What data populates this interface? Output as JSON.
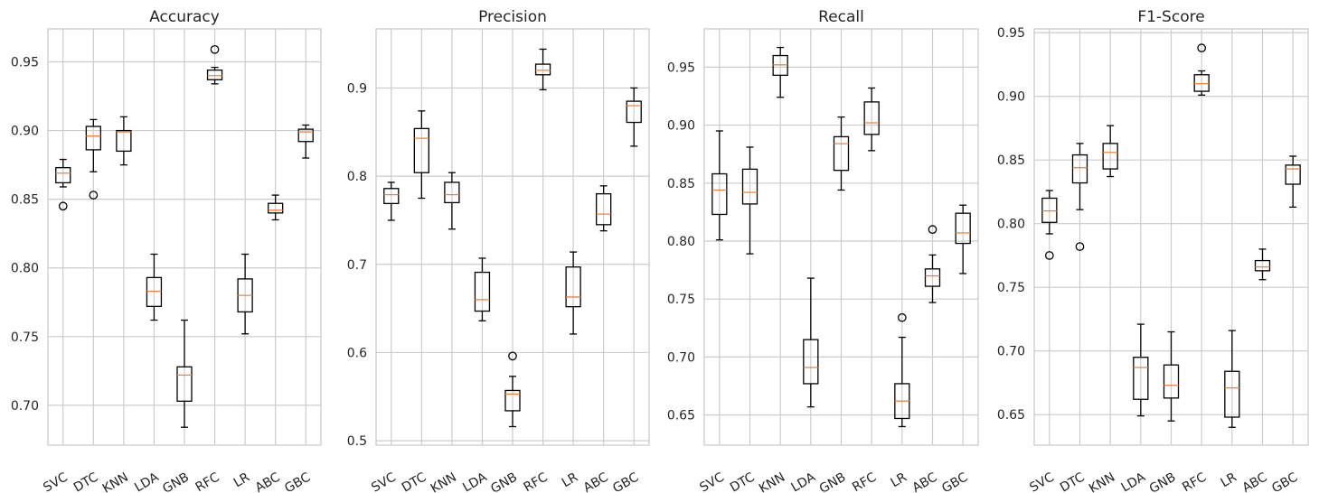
{
  "chart_data": [
    {
      "type": "box",
      "title": "Accuracy",
      "categories": [
        "SVC",
        "DTC",
        "KNN",
        "LDA",
        "GNB",
        "RFC",
        "LR",
        "ABC",
        "GBC"
      ],
      "yticks": [
        0.7,
        0.75,
        0.8,
        0.85,
        0.9,
        0.95
      ],
      "ytick_labels": [
        "0.70",
        "0.75",
        "0.80",
        "0.85",
        "0.90",
        "0.95"
      ],
      "ylim": [
        0.671,
        0.974
      ],
      "grid": true,
      "boxes": [
        {
          "whislo": 0.859,
          "q1": 0.862,
          "med": 0.869,
          "q3": 0.873,
          "whishi": 0.879,
          "fliers": [
            0.845
          ]
        },
        {
          "whislo": 0.87,
          "q1": 0.886,
          "med": 0.896,
          "q3": 0.903,
          "whishi": 0.908,
          "fliers": [
            0.853
          ]
        },
        {
          "whislo": 0.875,
          "q1": 0.885,
          "med": 0.899,
          "q3": 0.9,
          "whishi": 0.91,
          "fliers": []
        },
        {
          "whislo": 0.762,
          "q1": 0.772,
          "med": 0.783,
          "q3": 0.793,
          "whishi": 0.81,
          "fliers": []
        },
        {
          "whislo": 0.684,
          "q1": 0.703,
          "med": 0.722,
          "q3": 0.728,
          "whishi": 0.762,
          "fliers": []
        },
        {
          "whislo": 0.934,
          "q1": 0.937,
          "med": 0.94,
          "q3": 0.944,
          "whishi": 0.946,
          "fliers": [
            0.959
          ]
        },
        {
          "whislo": 0.752,
          "q1": 0.768,
          "med": 0.78,
          "q3": 0.792,
          "whishi": 0.81,
          "fliers": []
        },
        {
          "whislo": 0.835,
          "q1": 0.84,
          "med": 0.842,
          "q3": 0.847,
          "whishi": 0.853,
          "fliers": []
        },
        {
          "whislo": 0.88,
          "q1": 0.892,
          "med": 0.899,
          "q3": 0.901,
          "whishi": 0.904,
          "fliers": []
        }
      ]
    },
    {
      "type": "box",
      "title": "Precision",
      "categories": [
        "SVC",
        "DTC",
        "KNN",
        "LDA",
        "GNB",
        "RFC",
        "LR",
        "ABC",
        "GBC"
      ],
      "yticks": [
        0.5,
        0.6,
        0.7,
        0.8,
        0.9
      ],
      "ytick_labels": [
        "0.5",
        "0.6",
        "0.7",
        "0.8",
        "0.9"
      ],
      "ylim": [
        0.495,
        0.967
      ],
      "grid": true,
      "boxes": [
        {
          "whislo": 0.75,
          "q1": 0.769,
          "med": 0.779,
          "q3": 0.786,
          "whishi": 0.793,
          "fliers": []
        },
        {
          "whislo": 0.775,
          "q1": 0.804,
          "med": 0.843,
          "q3": 0.854,
          "whishi": 0.874,
          "fliers": []
        },
        {
          "whislo": 0.74,
          "q1": 0.77,
          "med": 0.779,
          "q3": 0.793,
          "whishi": 0.804,
          "fliers": []
        },
        {
          "whislo": 0.636,
          "q1": 0.647,
          "med": 0.66,
          "q3": 0.691,
          "whishi": 0.707,
          "fliers": []
        },
        {
          "whislo": 0.516,
          "q1": 0.534,
          "med": 0.553,
          "q3": 0.557,
          "whishi": 0.573,
          "fliers": [
            0.596
          ]
        },
        {
          "whislo": 0.898,
          "q1": 0.915,
          "med": 0.92,
          "q3": 0.927,
          "whishi": 0.944,
          "fliers": []
        },
        {
          "whislo": 0.621,
          "q1": 0.652,
          "med": 0.663,
          "q3": 0.697,
          "whishi": 0.714,
          "fliers": []
        },
        {
          "whislo": 0.738,
          "q1": 0.745,
          "med": 0.757,
          "q3": 0.78,
          "whishi": 0.789,
          "fliers": []
        },
        {
          "whislo": 0.834,
          "q1": 0.861,
          "med": 0.88,
          "q3": 0.885,
          "whishi": 0.9,
          "fliers": []
        }
      ]
    },
    {
      "type": "box",
      "title": "Recall",
      "categories": [
        "SVC",
        "DTC",
        "KNN",
        "LDA",
        "GNB",
        "RFC",
        "LR",
        "ABC",
        "GBC"
      ],
      "yticks": [
        0.65,
        0.7,
        0.75,
        0.8,
        0.85,
        0.9,
        0.95
      ],
      "ytick_labels": [
        "0.65",
        "0.70",
        "0.75",
        "0.80",
        "0.85",
        "0.90",
        "0.95"
      ],
      "ylim": [
        0.624,
        0.983
      ],
      "grid": true,
      "boxes": [
        {
          "whislo": 0.801,
          "q1": 0.823,
          "med": 0.844,
          "q3": 0.858,
          "whishi": 0.895,
          "fliers": []
        },
        {
          "whislo": 0.789,
          "q1": 0.832,
          "med": 0.842,
          "q3": 0.862,
          "whishi": 0.881,
          "fliers": []
        },
        {
          "whislo": 0.924,
          "q1": 0.943,
          "med": 0.952,
          "q3": 0.96,
          "whishi": 0.967,
          "fliers": []
        },
        {
          "whislo": 0.657,
          "q1": 0.677,
          "med": 0.691,
          "q3": 0.715,
          "whishi": 0.768,
          "fliers": []
        },
        {
          "whislo": 0.844,
          "q1": 0.861,
          "med": 0.884,
          "q3": 0.89,
          "whishi": 0.907,
          "fliers": []
        },
        {
          "whislo": 0.878,
          "q1": 0.892,
          "med": 0.902,
          "q3": 0.92,
          "whishi": 0.932,
          "fliers": []
        },
        {
          "whislo": 0.64,
          "q1": 0.647,
          "med": 0.662,
          "q3": 0.677,
          "whishi": 0.717,
          "fliers": [
            0.734
          ]
        },
        {
          "whislo": 0.747,
          "q1": 0.761,
          "med": 0.77,
          "q3": 0.776,
          "whishi": 0.788,
          "fliers": [
            0.81
          ]
        },
        {
          "whislo": 0.772,
          "q1": 0.798,
          "med": 0.807,
          "q3": 0.824,
          "whishi": 0.831,
          "fliers": []
        }
      ]
    },
    {
      "type": "box",
      "title": "F1-Score",
      "categories": [
        "SVC",
        "DTC",
        "KNN",
        "LDA",
        "GNB",
        "RFC",
        "LR",
        "ABC",
        "GBC"
      ],
      "yticks": [
        0.65,
        0.7,
        0.75,
        0.8,
        0.85,
        0.9,
        0.95
      ],
      "ytick_labels": [
        "0.65",
        "0.70",
        "0.75",
        "0.80",
        "0.85",
        "0.90",
        "0.95"
      ],
      "ylim": [
        0.626,
        0.953
      ],
      "grid": true,
      "boxes": [
        {
          "whislo": 0.792,
          "q1": 0.801,
          "med": 0.81,
          "q3": 0.82,
          "whishi": 0.826,
          "fliers": [
            0.775
          ]
        },
        {
          "whislo": 0.811,
          "q1": 0.832,
          "med": 0.844,
          "q3": 0.854,
          "whishi": 0.863,
          "fliers": [
            0.782
          ]
        },
        {
          "whislo": 0.837,
          "q1": 0.843,
          "med": 0.856,
          "q3": 0.863,
          "whishi": 0.877,
          "fliers": []
        },
        {
          "whislo": 0.649,
          "q1": 0.662,
          "med": 0.687,
          "q3": 0.695,
          "whishi": 0.721,
          "fliers": []
        },
        {
          "whislo": 0.645,
          "q1": 0.663,
          "med": 0.673,
          "q3": 0.689,
          "whishi": 0.715,
          "fliers": []
        },
        {
          "whislo": 0.901,
          "q1": 0.904,
          "med": 0.91,
          "q3": 0.917,
          "whishi": 0.92,
          "fliers": [
            0.938
          ]
        },
        {
          "whislo": 0.64,
          "q1": 0.648,
          "med": 0.671,
          "q3": 0.684,
          "whishi": 0.716,
          "fliers": []
        },
        {
          "whislo": 0.756,
          "q1": 0.763,
          "med": 0.766,
          "q3": 0.771,
          "whishi": 0.78,
          "fliers": []
        },
        {
          "whislo": 0.813,
          "q1": 0.831,
          "med": 0.843,
          "q3": 0.846,
          "whishi": 0.853,
          "fliers": []
        }
      ]
    }
  ]
}
